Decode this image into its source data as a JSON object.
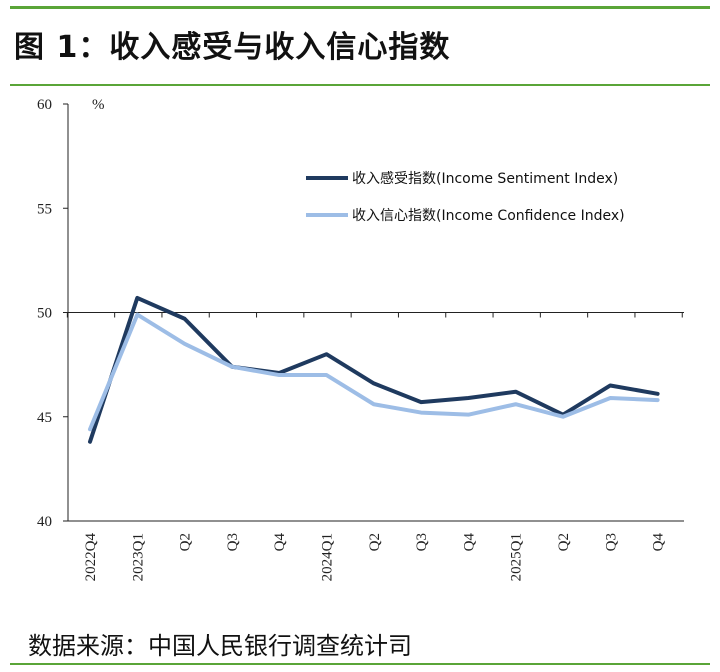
{
  "header": {
    "title": "图 1：收入感受与收入信心指数"
  },
  "footer": {
    "source": "数据来源：中国人民银行调查统计司"
  },
  "chart_data": {
    "type": "line",
    "title": "收入感受与收入信心指数",
    "unit_label": "%",
    "x_tick_labels": [
      "2022Q4",
      "2023Q1",
      "Q2",
      "Q3",
      "Q4",
      "2024Q1",
      "Q2",
      "Q3",
      "Q4",
      "2025Q1",
      "Q2",
      "Q3",
      "Q4"
    ],
    "ylim": [
      40,
      60
    ],
    "yticks": [
      40,
      45,
      50,
      55,
      60
    ],
    "reference_line": 50,
    "grid": false,
    "legend_position": "top-right",
    "series": [
      {
        "name": "收入感受指数(Income Sentiment Index)",
        "color": "#1f3a5f",
        "values": [
          43.8,
          50.7,
          49.7,
          47.4,
          47.1,
          48.0,
          46.6,
          45.7,
          45.9,
          46.2,
          45.1,
          46.5,
          46.1
        ]
      },
      {
        "name": "收入信心指数(Income Confidence Index)",
        "color": "#9dbde6",
        "values": [
          44.4,
          49.9,
          48.5,
          47.4,
          47.0,
          47.0,
          45.6,
          45.2,
          45.1,
          45.6,
          45.0,
          45.9,
          45.8
        ]
      }
    ]
  }
}
